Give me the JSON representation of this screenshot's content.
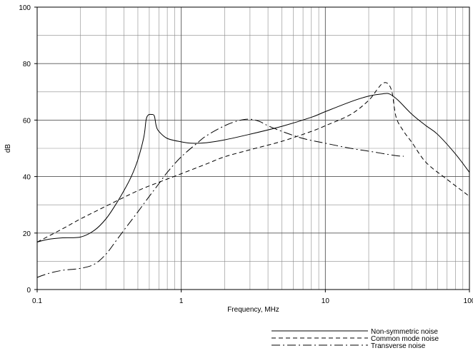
{
  "chart_data": {
    "type": "line",
    "xlabel": "Frequency, MHz",
    "ylabel": "dB",
    "xscale": "log",
    "xlim": [
      0.1,
      100
    ],
    "ylim": [
      0,
      100
    ],
    "grid": true,
    "legend_position": "bottom-right",
    "x_ticks": [
      {
        "value": 0.1,
        "label": "0.1"
      },
      {
        "value": 1,
        "label": "1"
      },
      {
        "value": 10,
        "label": "10"
      },
      {
        "value": 100,
        "label": "100"
      }
    ],
    "y_ticks": [
      {
        "value": 0,
        "label": "0"
      },
      {
        "value": 20,
        "label": "20"
      },
      {
        "value": 40,
        "label": "40"
      },
      {
        "value": 60,
        "label": "60"
      },
      {
        "value": 80,
        "label": "80"
      },
      {
        "value": 100,
        "label": "100"
      }
    ],
    "series": [
      {
        "name": "Non-symmetric noise",
        "dash": "solid",
        "color": "#000000",
        "points": [
          [
            0.1,
            16.8
          ],
          [
            0.12,
            17.8
          ],
          [
            0.15,
            18.3
          ],
          [
            0.2,
            18.6
          ],
          [
            0.25,
            21
          ],
          [
            0.3,
            25
          ],
          [
            0.35,
            30
          ],
          [
            0.4,
            35
          ],
          [
            0.45,
            40
          ],
          [
            0.5,
            46
          ],
          [
            0.55,
            54
          ],
          [
            0.57,
            60
          ],
          [
            0.59,
            61.8
          ],
          [
            0.62,
            62
          ],
          [
            0.65,
            61.5
          ],
          [
            0.67,
            58
          ],
          [
            0.7,
            56
          ],
          [
            0.8,
            53.5
          ],
          [
            1.0,
            52.3
          ],
          [
            1.2,
            51.8
          ],
          [
            1.5,
            52
          ],
          [
            2,
            53
          ],
          [
            3,
            55
          ],
          [
            5,
            57.8
          ],
          [
            8,
            61
          ],
          [
            10,
            63
          ],
          [
            15,
            66.5
          ],
          [
            20,
            68.5
          ],
          [
            25,
            69.3
          ],
          [
            28,
            69.2
          ],
          [
            32,
            67
          ],
          [
            40,
            62
          ],
          [
            50,
            58
          ],
          [
            60,
            55
          ],
          [
            80,
            48
          ],
          [
            100,
            41.5
          ]
        ]
      },
      {
        "name": "Common mode noise",
        "dash": "dash",
        "color": "#000000",
        "points": [
          [
            0.1,
            16.8
          ],
          [
            0.15,
            21.5
          ],
          [
            0.2,
            25
          ],
          [
            0.3,
            29.5
          ],
          [
            0.5,
            35
          ],
          [
            0.7,
            38
          ],
          [
            1,
            41
          ],
          [
            1.5,
            44.5
          ],
          [
            2,
            47
          ],
          [
            3,
            49.5
          ],
          [
            5,
            52.5
          ],
          [
            8,
            56
          ],
          [
            10,
            58
          ],
          [
            15,
            62
          ],
          [
            20,
            67
          ],
          [
            23,
            71
          ],
          [
            25,
            73
          ],
          [
            27,
            73
          ],
          [
            29,
            70
          ],
          [
            31,
            61
          ],
          [
            35,
            56
          ],
          [
            40,
            52
          ],
          [
            50,
            45
          ],
          [
            70,
            39
          ],
          [
            100,
            33
          ]
        ]
      },
      {
        "name": "Transverse noise",
        "dash": "dashdot",
        "color": "#000000",
        "points": [
          [
            0.1,
            4.3
          ],
          [
            0.12,
            5.7
          ],
          [
            0.15,
            6.8
          ],
          [
            0.2,
            7.5
          ],
          [
            0.25,
            9
          ],
          [
            0.3,
            12.5
          ],
          [
            0.35,
            17
          ],
          [
            0.4,
            21
          ],
          [
            0.5,
            27.5
          ],
          [
            0.6,
            33
          ],
          [
            0.7,
            37.5
          ],
          [
            0.8,
            41.5
          ],
          [
            1,
            47
          ],
          [
            1.3,
            52
          ],
          [
            1.5,
            54.5
          ],
          [
            2,
            58
          ],
          [
            2.5,
            59.8
          ],
          [
            3,
            60.3
          ],
          [
            3.5,
            59.5
          ],
          [
            4,
            58
          ],
          [
            5,
            56
          ],
          [
            7,
            53.5
          ],
          [
            10,
            51.8
          ],
          [
            15,
            50
          ],
          [
            20,
            49
          ],
          [
            30,
            47.5
          ],
          [
            35,
            47.2
          ]
        ]
      }
    ]
  }
}
